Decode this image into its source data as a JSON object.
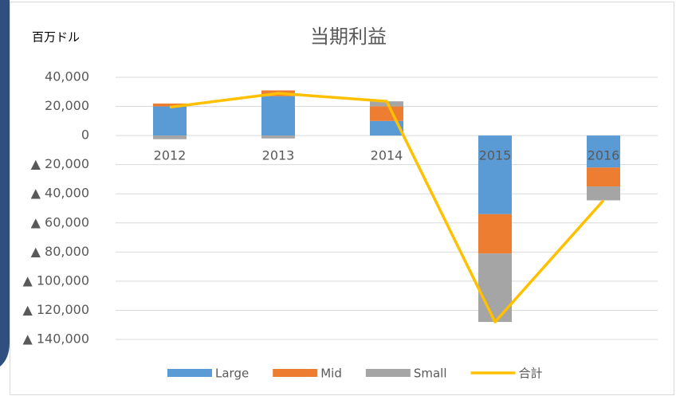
{
  "chart_data": {
    "type": "bar",
    "stacked": true,
    "title": "当期利益",
    "y_label": "百万ドル",
    "categories": [
      "2012",
      "2013",
      "2014",
      "2015",
      "2016"
    ],
    "series": [
      {
        "name": "Large",
        "color": "#5b9bd5",
        "values": [
          20000,
          27000,
          10000,
          -54000,
          -22000
        ]
      },
      {
        "name": "Mid",
        "color": "#ed7d31",
        "values": [
          2000,
          4000,
          10000,
          -27000,
          -13000
        ]
      },
      {
        "name": "Small",
        "color": "#a5a5a5",
        "values": [
          -2500,
          -2000,
          3500,
          -47000,
          -9500
        ]
      },
      {
        "name": "合計",
        "type": "line",
        "color": "#ffc000",
        "values": [
          19500,
          29000,
          23500,
          -128000,
          -44500
        ]
      }
    ],
    "ylim": [
      -140000,
      40000
    ],
    "yticks": [
      {
        "value": 40000,
        "label": "40,000"
      },
      {
        "value": 20000,
        "label": "20,000"
      },
      0,
      {
        "value": -20000,
        "label": "▲ 20,000"
      },
      {
        "value": -40000,
        "label": "▲ 40,000"
      },
      {
        "value": -60000,
        "label": "▲ 60,000"
      },
      {
        "value": -80000,
        "label": "▲ 80,000"
      },
      {
        "value": -100000,
        "label": "▲ 100,000"
      },
      {
        "value": -120000,
        "label": "▲ 120,000"
      },
      {
        "value": -140000,
        "label": "▲ 140,000"
      }
    ],
    "grid": true,
    "legend": "bottom"
  }
}
